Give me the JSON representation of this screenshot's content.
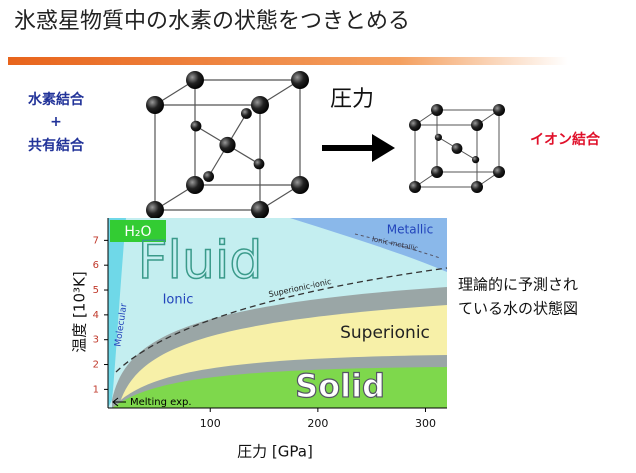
{
  "title": "氷惑星物質中の水素の状態をつきとめる",
  "bonds": {
    "left_line1": "水素結合",
    "plus": "+",
    "left_line2": "共有結合",
    "pressure": "圧力",
    "right": "イオン結合"
  },
  "phase_diagram": {
    "label": "H₂O",
    "xlabel": "圧力 [GPa]",
    "ylabel": "温度 [10³K]",
    "xlim": [
      5,
      320
    ],
    "ylim": [
      0.25,
      7.9
    ],
    "xticks": [
      100,
      200,
      300
    ],
    "yticks": [
      1,
      2,
      3,
      4,
      5,
      6,
      7
    ],
    "regions": {
      "fluid": "Fluid",
      "metallic": "Metallic",
      "ionic": "Ionic",
      "molecular": "Molecular",
      "superionic": "Superionic",
      "solid": "Solid",
      "melting": "Melting exp.",
      "boundary1": "Ionic-metallic",
      "boundary2": "Superionic-ionic"
    },
    "caption": [
      "理論的に予測され",
      "ている水の状態図"
    ]
  }
}
